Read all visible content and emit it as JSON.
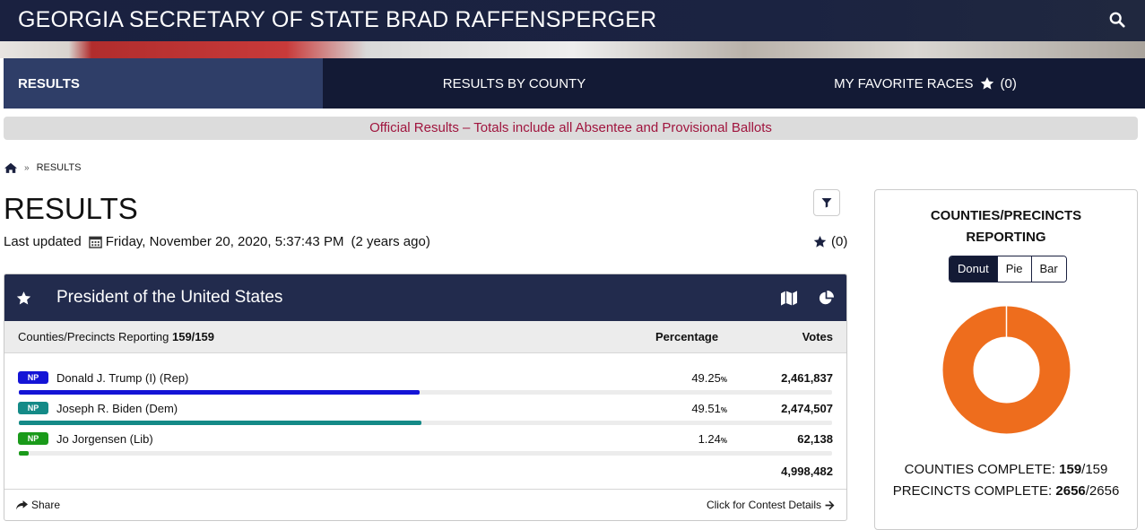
{
  "header": {
    "title": "GEORGIA SECRETARY OF STATE BRAD RAFFENSPERGER",
    "search_icon": "search-icon"
  },
  "nav": {
    "results": "RESULTS",
    "by_county": "RESULTS BY COUNTY",
    "favorites": "MY FAVORITE RACES",
    "favorites_count": "(0)"
  },
  "notice": "Official Results – Totals include all Absentee and Provisional Ballots",
  "breadcrumb": {
    "current": "RESULTS"
  },
  "page": {
    "title": "RESULTS",
    "last_updated_label": "Last updated",
    "last_updated": "Friday, November 20, 2020, 5:37:43 PM",
    "ago": "(2 years ago)",
    "fav_count": "(0)"
  },
  "contest": {
    "title": "President of the United States",
    "reporting_label": "Counties/Precincts Reporting",
    "reporting_value": "159/159",
    "col_percentage": "Percentage",
    "col_votes": "Votes",
    "candidates": [
      {
        "badge": "NP",
        "name": "Donald J. Trump (I) (Rep)",
        "pct": "49.25",
        "votes": "2,461,837",
        "share": 0.4925,
        "color": "#1414d6"
      },
      {
        "badge": "NP",
        "name": "Joseph R. Biden (Dem)",
        "pct": "49.51",
        "votes": "2,474,507",
        "share": 0.4951,
        "color": "#148a87"
      },
      {
        "badge": "NP",
        "name": "Jo Jorgensen (Lib)",
        "pct": "1.24",
        "votes": "62,138",
        "share": 0.0124,
        "color": "#1a9a1a"
      }
    ],
    "pct_unit": "%",
    "total_votes": "4,998,482",
    "share_label": "Share",
    "details_label": "Click for Contest Details"
  },
  "reporting_panel": {
    "title_line1": "COUNTIES/PRECINCTS",
    "title_line2": "REPORTING",
    "chart_types": [
      "Donut",
      "Pie",
      "Bar"
    ],
    "selected_chart_type": "Donut",
    "counties_label": "COUNTIES COMPLETE:",
    "counties_complete": "159",
    "counties_total": "/159",
    "precincts_label": "PRECINCTS COMPLETE:",
    "precincts_complete": "2656",
    "precincts_total": "/2656",
    "complete_fraction": 1.0,
    "donut_color": "#ee6d1d"
  }
}
